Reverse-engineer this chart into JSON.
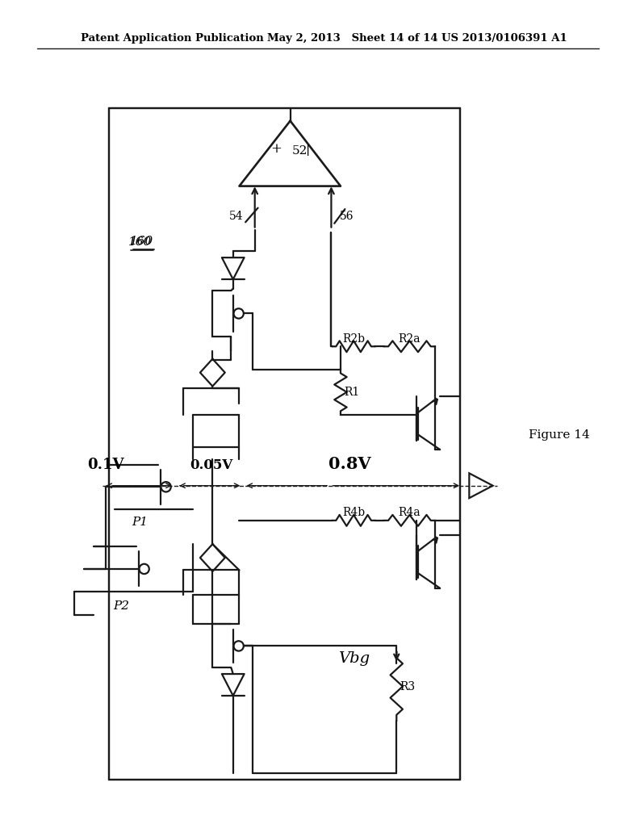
{
  "bg_color": "#ffffff",
  "line_color": "#1a1a1a",
  "header_left": "Patent Application Publication",
  "header_mid": "May 2, 2013   Sheet 14 of 14",
  "header_right": "US 2013/0106391 A1",
  "figure_label": "Figure 14",
  "lw": 1.6
}
